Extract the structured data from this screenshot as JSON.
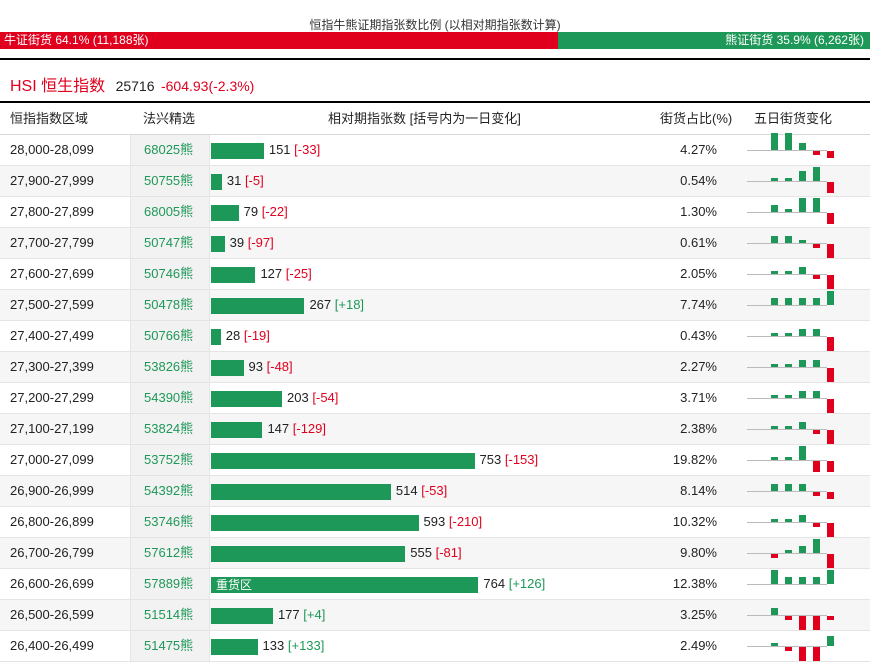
{
  "ratio": {
    "title": "恒指牛熊证期指张数比例 (以相对期指张数计算)",
    "bull_label": "牛证街货 64.1% (11,188张)",
    "bear_label": "熊证街货 35.9% (6,262张)",
    "bull_share": 0.641,
    "colors": {
      "bull": "#e0001e",
      "bear": "#1e9858"
    }
  },
  "index": {
    "title": "HSI 恒生指数",
    "value": "25716",
    "change": "-604.93(-2.3%)"
  },
  "table": {
    "headers": {
      "range": "恒指指数区域",
      "pick": "法兴精选",
      "contracts": "相对期指张数 [括号内为一日变化]",
      "share": "街货占比(%)",
      "trend": "五日街货变化"
    },
    "max_contracts": 800,
    "rows": [
      {
        "range": "28,000-28,099",
        "code": "68025熊",
        "value": 151,
        "value_text": "151",
        "change": "[-33]",
        "change_sign": "neg",
        "pct": "4.27%",
        "spark": [
          5,
          5,
          2,
          -1,
          -2
        ]
      },
      {
        "range": "27,900-27,999",
        "code": "50755熊",
        "value": 31,
        "value_text": "31",
        "change": "[-5]",
        "change_sign": "neg",
        "pct": "0.54%",
        "spark": [
          1,
          1,
          3,
          4,
          -3
        ]
      },
      {
        "range": "27,800-27,899",
        "code": "68005熊",
        "value": 79,
        "value_text": "79",
        "change": "[-22]",
        "change_sign": "neg",
        "pct": "1.30%",
        "spark": [
          2,
          1,
          4,
          4,
          -3
        ]
      },
      {
        "range": "27,700-27,799",
        "code": "50747熊",
        "value": 39,
        "value_text": "39",
        "change": "[-97]",
        "change_sign": "neg",
        "pct": "0.61%",
        "spark": [
          2,
          2,
          1,
          -1,
          -4
        ]
      },
      {
        "range": "27,600-27,699",
        "code": "50746熊",
        "value": 127,
        "value_text": "127",
        "change": "[-25]",
        "change_sign": "neg",
        "pct": "2.05%",
        "spark": [
          1,
          1,
          2,
          -1,
          -4
        ]
      },
      {
        "range": "27,500-27,599",
        "code": "50478熊",
        "value": 267,
        "value_text": "267",
        "change": "[+18]",
        "change_sign": "pos",
        "pct": "7.74%",
        "spark": [
          2,
          2,
          2,
          2,
          4
        ]
      },
      {
        "range": "27,400-27,499",
        "code": "50766熊",
        "value": 28,
        "value_text": "28",
        "change": "[-19]",
        "change_sign": "neg",
        "pct": "0.43%",
        "spark": [
          1,
          1,
          2,
          2,
          -4
        ]
      },
      {
        "range": "27,300-27,399",
        "code": "53826熊",
        "value": 93,
        "value_text": "93",
        "change": "[-48]",
        "change_sign": "neg",
        "pct": "2.27%",
        "spark": [
          1,
          1,
          2,
          2,
          -4
        ]
      },
      {
        "range": "27,200-27,299",
        "code": "54390熊",
        "value": 203,
        "value_text": "203",
        "change": "[-54]",
        "change_sign": "neg",
        "pct": "3.71%",
        "spark": [
          1,
          1,
          2,
          2,
          -4
        ]
      },
      {
        "range": "27,100-27,199",
        "code": "53824熊",
        "value": 147,
        "value_text": "147",
        "change": "[-129]",
        "change_sign": "neg",
        "pct": "2.38%",
        "spark": [
          1,
          1,
          2,
          -1,
          -4
        ]
      },
      {
        "range": "27,000-27,099",
        "code": "53752熊",
        "value": 753,
        "value_text": "753",
        "change": "[-153]",
        "change_sign": "neg",
        "pct": "19.82%",
        "spark": [
          1,
          1,
          4,
          -3,
          -3
        ]
      },
      {
        "range": "26,900-26,999",
        "code": "54392熊",
        "value": 514,
        "value_text": "514",
        "change": "[-53]",
        "change_sign": "neg",
        "pct": "8.14%",
        "spark": [
          2,
          2,
          2,
          -1,
          -2
        ]
      },
      {
        "range": "26,800-26,899",
        "code": "53746熊",
        "value": 593,
        "value_text": "593",
        "change": "[-210]",
        "change_sign": "neg",
        "pct": "10.32%",
        "spark": [
          1,
          1,
          2,
          -1,
          -4
        ]
      },
      {
        "range": "26,700-26,799",
        "code": "57612熊",
        "value": 555,
        "value_text": "555",
        "change": "[-81]",
        "change_sign": "neg",
        "pct": "9.80%",
        "spark": [
          -1,
          1,
          2,
          4,
          -4
        ]
      },
      {
        "range": "26,600-26,699",
        "code": "57889熊",
        "value": 764,
        "value_text": "764",
        "change": "[+126]",
        "change_sign": "pos",
        "pct": "12.38%",
        "spark": [
          4,
          2,
          2,
          2,
          4
        ],
        "bar_label": "重货区"
      },
      {
        "range": "26,500-26,599",
        "code": "51514熊",
        "value": 177,
        "value_text": "177",
        "change": "[+4]",
        "change_sign": "pos",
        "pct": "3.25%",
        "spark": [
          2,
          -1,
          -4,
          -4,
          -1
        ]
      },
      {
        "range": "26,400-26,499",
        "code": "51475熊",
        "value": 133,
        "value_text": "133",
        "change": "[+133]",
        "change_sign": "pos",
        "pct": "2.49%",
        "spark": [
          1,
          -1,
          -4,
          -4,
          3
        ]
      }
    ]
  }
}
